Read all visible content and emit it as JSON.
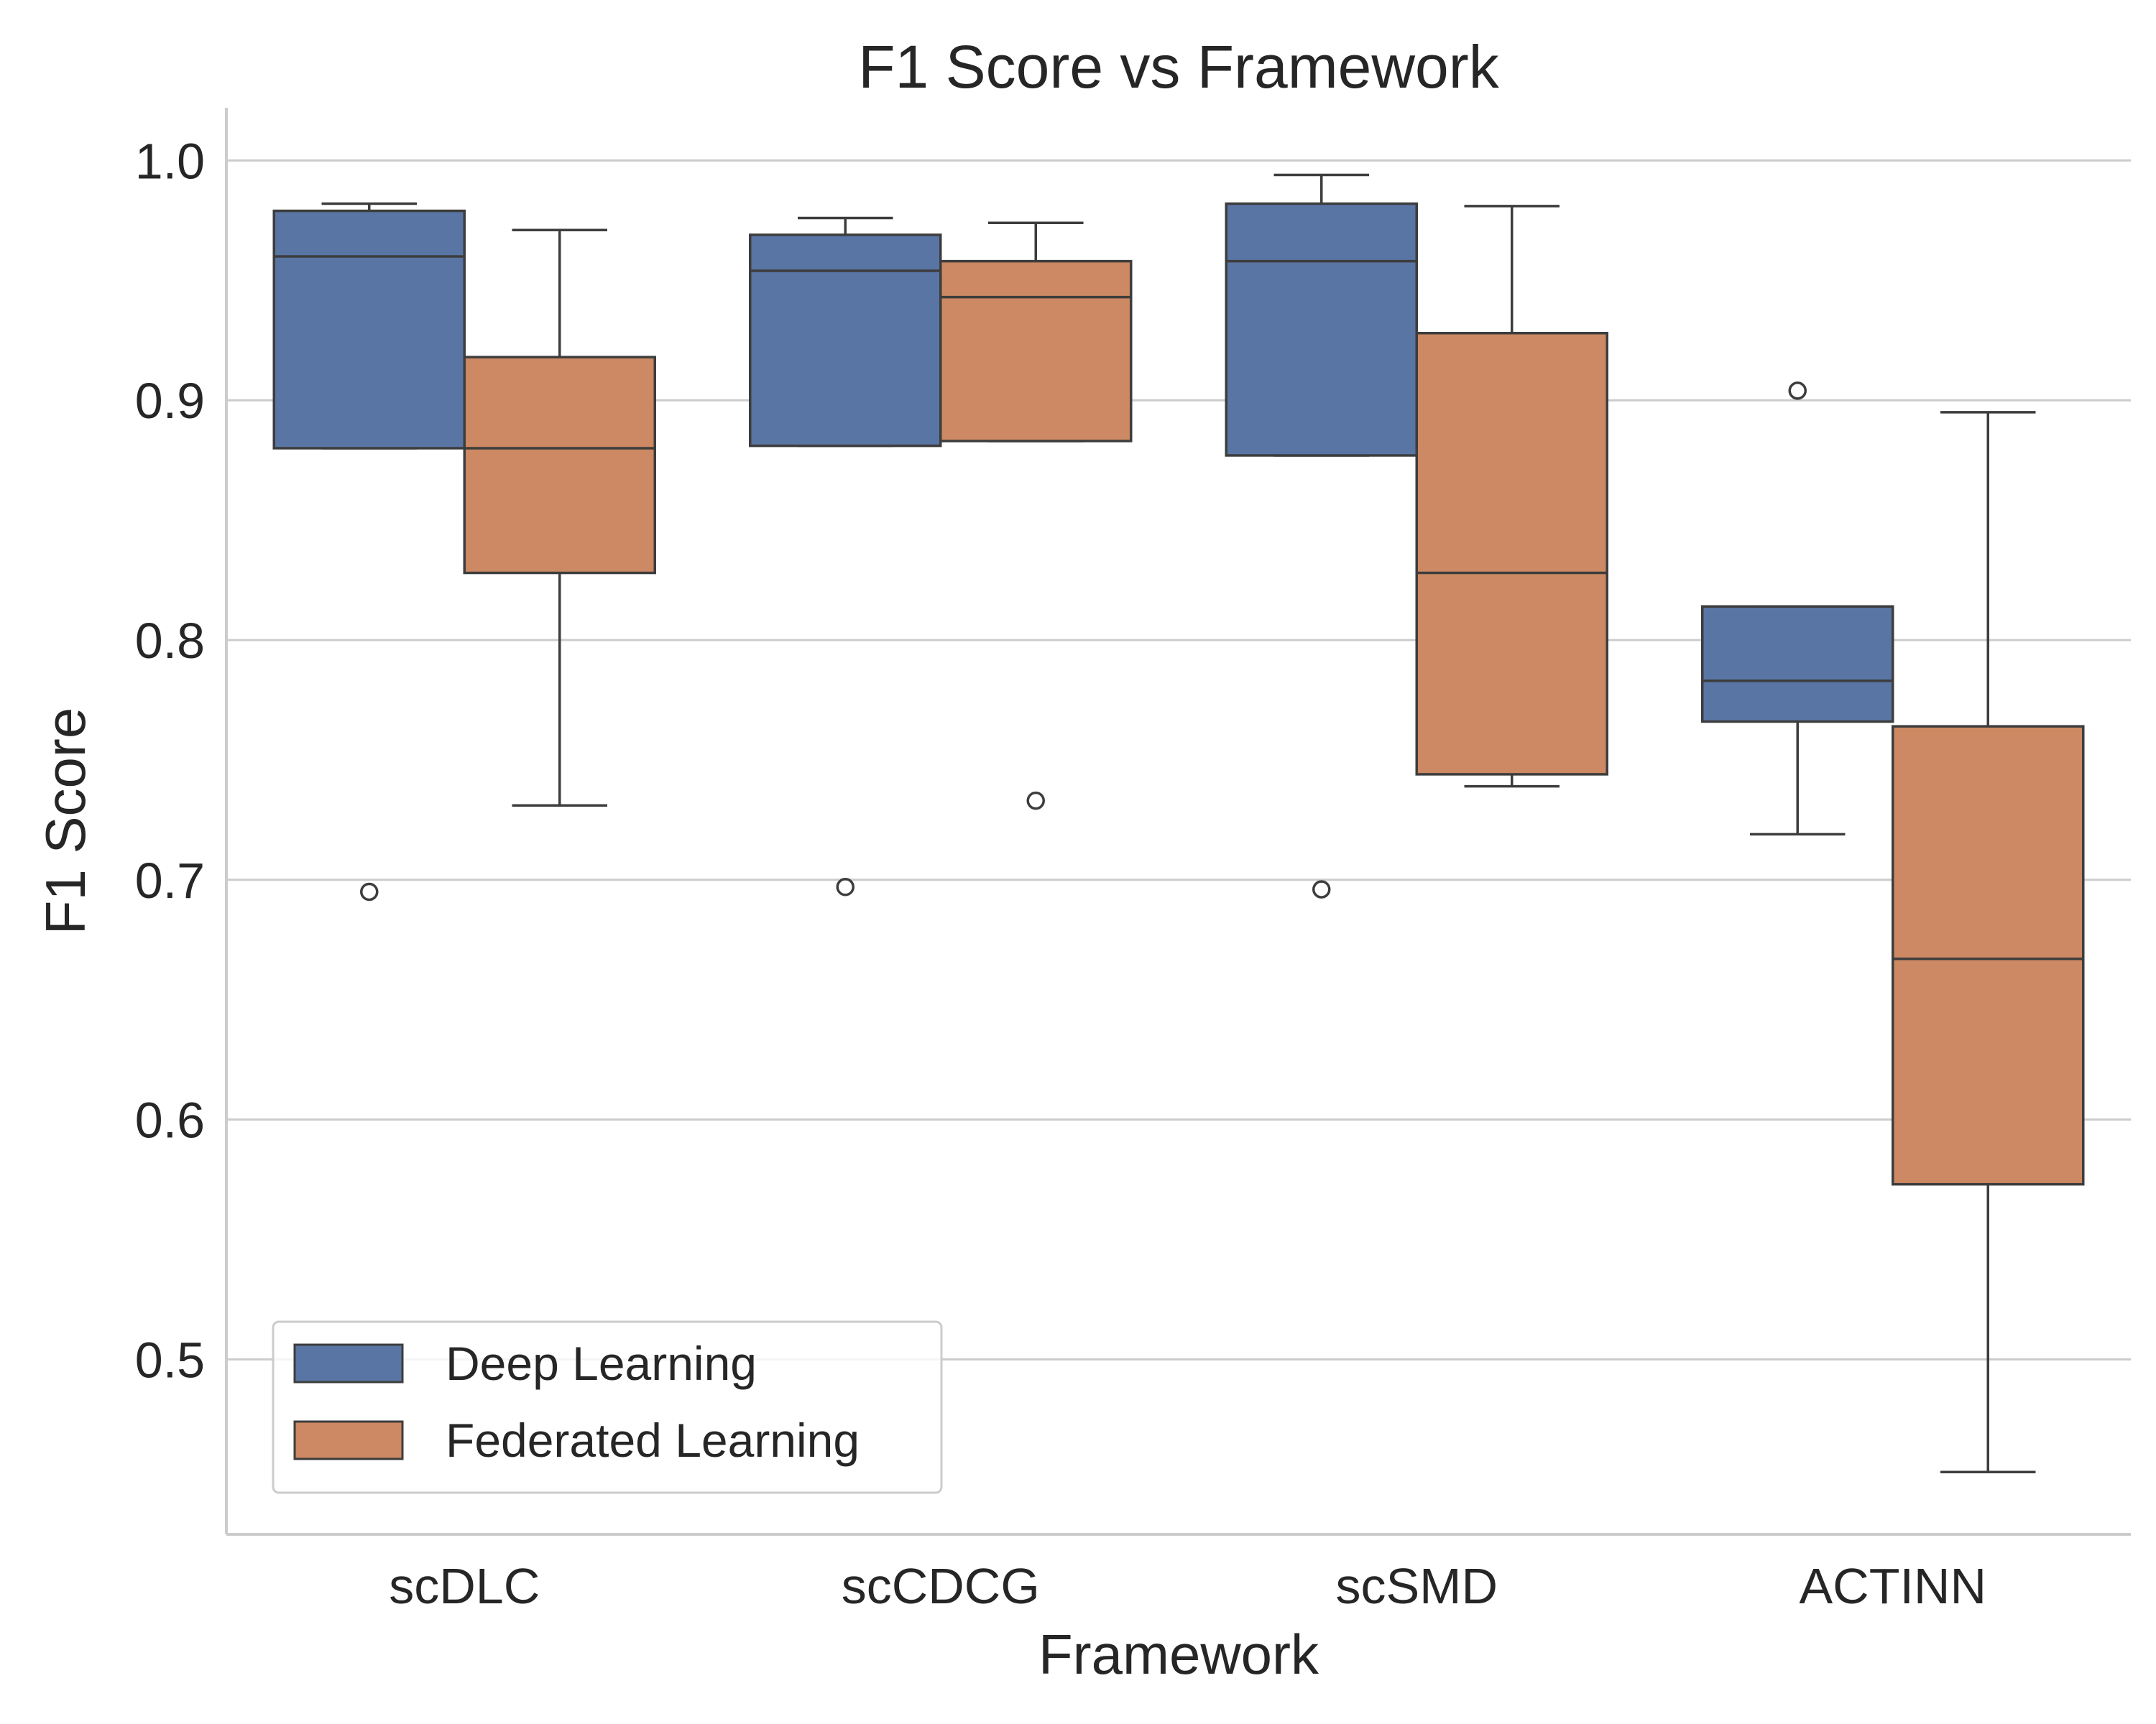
{
  "chart_data": {
    "type": "box",
    "title": "F1 Score vs Framework",
    "xlabel": "Framework",
    "ylabel": "F1 Score",
    "ylim": [
      0.427,
      1.022
    ],
    "yticks": [
      0.5,
      0.6,
      0.7,
      0.8,
      0.9,
      1.0
    ],
    "ytick_labels": [
      "0.5",
      "0.6",
      "0.7",
      "0.8",
      "0.9",
      "1.0"
    ],
    "grid": "horizontal",
    "legend_position": "lower-left",
    "categories": [
      "scDLC",
      "scCDCG",
      "scSMD",
      "ACTINN"
    ],
    "series": [
      {
        "name": "Deep Learning",
        "color": "#5975a4",
        "boxes": [
          {
            "whisker_low": 0.88,
            "q1": 0.88,
            "median": 0.96,
            "q3": 0.979,
            "whisker_high": 0.982,
            "outliers": [
              0.695
            ]
          },
          {
            "whisker_low": 0.881,
            "q1": 0.881,
            "median": 0.954,
            "q3": 0.969,
            "whisker_high": 0.976,
            "outliers": [
              0.697
            ]
          },
          {
            "whisker_low": 0.877,
            "q1": 0.877,
            "median": 0.958,
            "q3": 0.982,
            "whisker_high": 0.994,
            "outliers": [
              0.696
            ]
          },
          {
            "whisker_low": 0.719,
            "q1": 0.766,
            "median": 0.783,
            "q3": 0.814,
            "whisker_high": 0.814,
            "outliers": [
              0.904
            ]
          }
        ]
      },
      {
        "name": "Federated Learning",
        "color": "#cc8963",
        "boxes": [
          {
            "whisker_low": 0.731,
            "q1": 0.828,
            "median": 0.88,
            "q3": 0.918,
            "whisker_high": 0.971,
            "outliers": []
          },
          {
            "whisker_low": 0.883,
            "q1": 0.883,
            "median": 0.943,
            "q3": 0.958,
            "whisker_high": 0.974,
            "outliers": [
              0.733
            ]
          },
          {
            "whisker_low": 0.739,
            "q1": 0.744,
            "median": 0.828,
            "q3": 0.928,
            "whisker_high": 0.981,
            "outliers": []
          },
          {
            "whisker_low": 0.453,
            "q1": 0.573,
            "median": 0.667,
            "q3": 0.764,
            "whisker_high": 0.895,
            "outliers": []
          }
        ]
      }
    ]
  }
}
